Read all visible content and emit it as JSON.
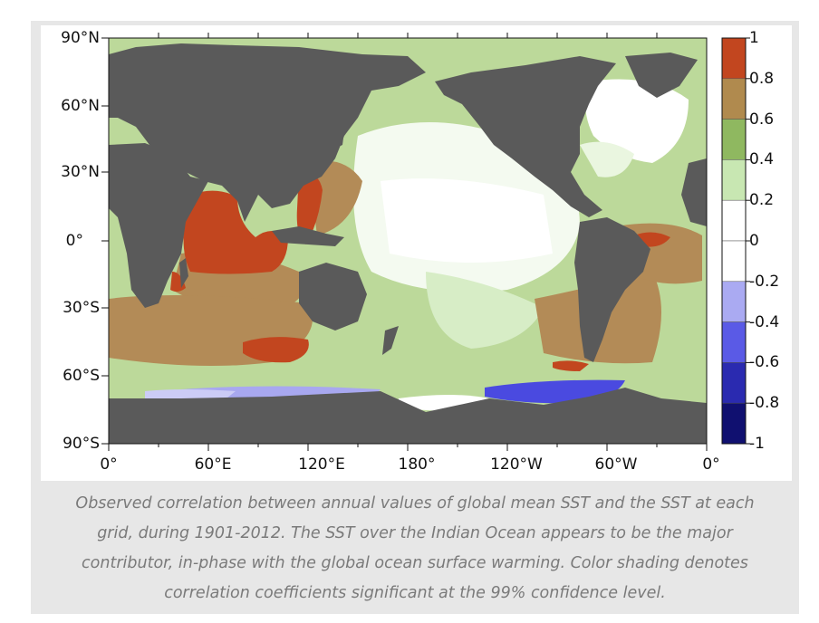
{
  "figure": {
    "lat_labels": [
      "90°N",
      "60°N",
      "30°N",
      "0°",
      "30°S",
      "60°S",
      "90°S"
    ],
    "lon_labels": [
      "0°",
      "60°E",
      "120°E",
      "180°",
      "120°W",
      "60°W",
      "0°"
    ],
    "colorbar": {
      "labels": [
        "1",
        "0.8",
        "0.6",
        "0.4",
        "0.2",
        "0",
        "-0.2",
        "-0.4",
        "-0.6",
        "-0.8",
        "-1"
      ],
      "colors": [
        "#c2461f",
        "#b08a4e",
        "#8fb860",
        "#c8e7b2",
        "#ffffff",
        "#ffffff",
        "#aaaaf2",
        "#5a5ae6",
        "#2a2ab0",
        "#101070"
      ]
    },
    "land_color": "#5a5a5a",
    "map_background": "#bcd99a"
  },
  "caption": {
    "line1": "Observed correlation between annual values of global mean SST and the SST at each",
    "line2": "grid, during 1901-2012. The SST over the Indian Ocean appears to be the major",
    "line3": "contributor, in-phase with the global ocean surface warming. Color shading denotes",
    "line4": "correlation coefficients significant at the 99% confidence level."
  }
}
